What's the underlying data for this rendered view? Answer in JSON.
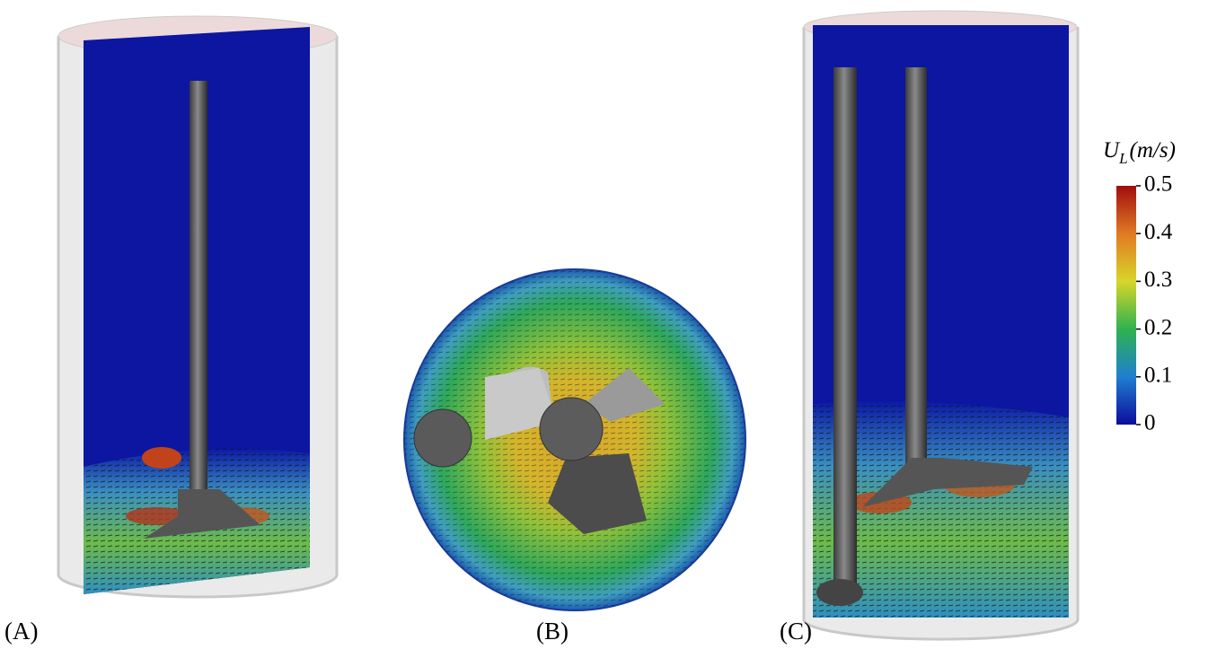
{
  "panels": [
    {
      "label": "(A)"
    },
    {
      "label": "(B)"
    },
    {
      "label": "(C)"
    }
  ],
  "colorbar": {
    "symbol": "U",
    "subscript": "L",
    "unit": "(m/s)",
    "range": [
      0,
      0.5
    ],
    "ticks": [
      0,
      0.1,
      0.2,
      0.3,
      0.4,
      0.5
    ]
  }
}
